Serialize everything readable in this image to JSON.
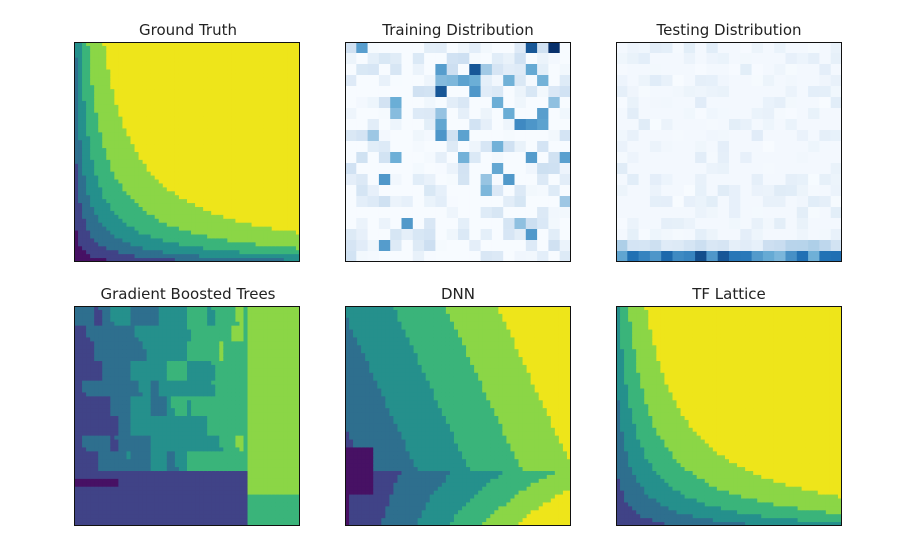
{
  "chart_data": [
    {
      "id": "ground-truth",
      "type": "heatmap",
      "title": "Ground Truth",
      "colormap": "viridis",
      "levels": 7,
      "function": "product",
      "params": {
        "k": 7.5,
        "p": 0.72
      }
    },
    {
      "id": "training-distribution",
      "type": "heatmap",
      "title": "Training Distribution",
      "colormap": "blues",
      "grid": {
        "rows": 20,
        "cols": 20
      },
      "distribution": "scattered-sparse"
    },
    {
      "id": "testing-distribution",
      "type": "heatmap",
      "title": "Testing Distribution",
      "colormap": "blues",
      "grid": {
        "rows": 20,
        "cols": 20
      },
      "distribution": "concentrated-bottom-row"
    },
    {
      "id": "gradient-boosted-trees",
      "type": "heatmap",
      "title": "Gradient Boosted Trees",
      "colormap": "viridis",
      "levels": 7,
      "function": "blocky-vertical-bands"
    },
    {
      "id": "dnn",
      "type": "heatmap",
      "title": "DNN",
      "colormap": "viridis",
      "levels": 7,
      "function": "diagonal-bands"
    },
    {
      "id": "tf-lattice",
      "type": "heatmap",
      "title": "TF Lattice",
      "colormap": "viridis",
      "levels": 7,
      "function": "product-smooth",
      "params": {
        "k": 7.0,
        "p": 0.85
      }
    }
  ]
}
